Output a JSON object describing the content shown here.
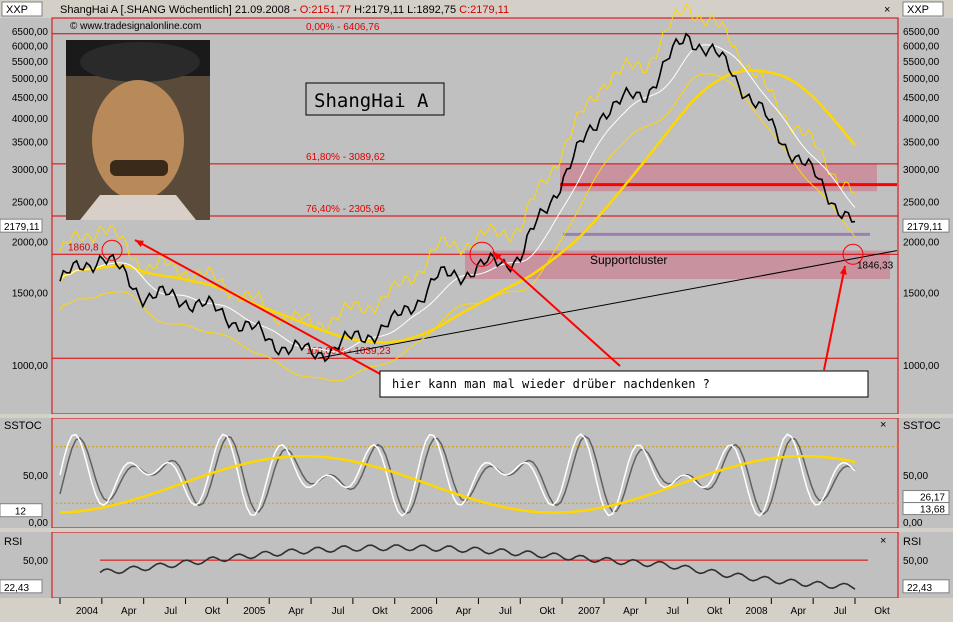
{
  "header": {
    "symbol_box": "XXP",
    "title": "ShangHai A [.SHANG  Wöchentlich] 21.09.2008",
    "ohlc_o": "O:2151,77",
    "ohlc_h": "H:2179,11",
    "ohlc_l": "L:1892,75",
    "ohlc_c": "C:2179,11",
    "watermark": "© www.tradesignalonline.com"
  },
  "price_panel": {
    "chart_title": "ShangHai A",
    "last_price": "2179,11",
    "y_labels": [
      "6500,00",
      "6000,00",
      "5500,00",
      "5000,00",
      "4500,00",
      "4000,00",
      "3500,00",
      "3000,00",
      "2500,00",
      "2000,00",
      "1500,00",
      "1000,00"
    ],
    "fib_levels": [
      {
        "label": "0,00% - 6406,76",
        "value": 6406.76
      },
      {
        "label": "61,80% - 3089,62",
        "value": 3089.62
      },
      {
        "label": "76,40% - 2305,96",
        "value": 2305.96
      },
      {
        "label": "100,00% - 1039,23",
        "value": 1039.23
      }
    ],
    "support_line_value": 1860.8,
    "resistance_value": 2750,
    "purple_value": 2080,
    "annotation_low_left": "1860,8",
    "annotation_low_right": "1846,33",
    "support_label": "Supportcluster",
    "comment": "hier kann man mal wieder drüber nachdenken ?"
  },
  "stoch_panel": {
    "name": "SSTOC",
    "y_labels": [
      "50,00",
      "0,00"
    ],
    "left_value": "12",
    "right_values": [
      "26,17",
      "13,68"
    ]
  },
  "rsi_panel": {
    "name": "RSI",
    "y_labels": [
      "50,00"
    ],
    "value": "22,43"
  },
  "x_axis": {
    "labels": [
      "2004",
      "Apr",
      "Jul",
      "Okt",
      "2005",
      "Apr",
      "Jul",
      "Okt",
      "2006",
      "Apr",
      "Jul",
      "Okt",
      "2007",
      "Apr",
      "Jul",
      "Okt",
      "2008",
      "Apr",
      "Jul",
      "Okt"
    ]
  },
  "colors": {
    "price": "#000000",
    "ma_fast": "#ffffff",
    "ma_slow": "#ffd700",
    "fib": "#e00000",
    "support_zone": "#c98a99",
    "purple": "#9a7fb5"
  },
  "chart_data": {
    "type": "line",
    "title": "ShangHai A",
    "x": [
      "2004-01",
      "2004-04",
      "2004-07",
      "2004-10",
      "2005-01",
      "2005-04",
      "2005-07",
      "2005-10",
      "2006-01",
      "2006-04",
      "2006-07",
      "2006-10",
      "2007-01",
      "2007-04",
      "2007-07",
      "2007-10",
      "2008-01",
      "2008-04",
      "2008-07",
      "2008-09"
    ],
    "series": [
      {
        "values": [
          1600,
          1860,
          1480,
          1450,
          1320,
          1150,
          1060,
          1150,
          1270,
          1620,
          1720,
          1840,
          2850,
          4200,
          4600,
          6400,
          5300,
          3800,
          2900,
          2179
        ]
      }
    ],
    "ylim": [
      760,
      7000
    ],
    "y_scale": "log"
  }
}
